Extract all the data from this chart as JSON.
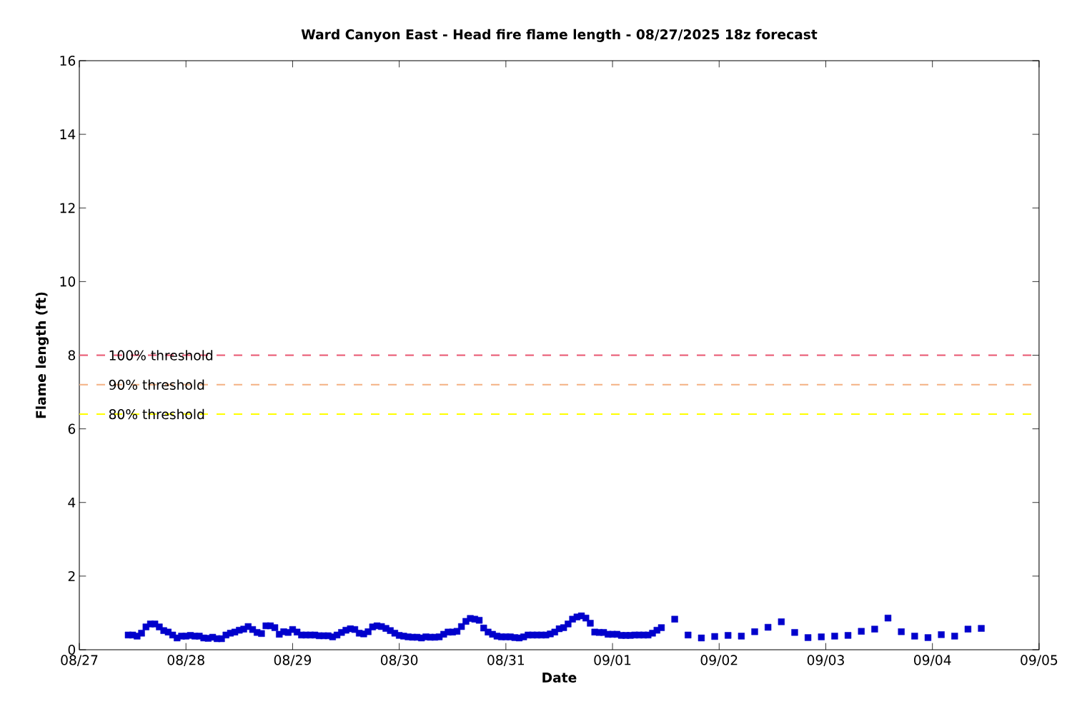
{
  "chart_data": {
    "type": "scatter",
    "title": "Ward Canyon East - Head fire flame length - 08/27/2025 18z forecast",
    "xlabel": "Date",
    "ylabel": "Flame length (ft)",
    "x": [
      "2025-08-27T11:00",
      "2025-08-27T12:00",
      "2025-08-27T13:00",
      "2025-08-27T14:00",
      "2025-08-27T15:00",
      "2025-08-27T16:00",
      "2025-08-27T17:00",
      "2025-08-27T18:00",
      "2025-08-27T19:00",
      "2025-08-27T20:00",
      "2025-08-27T21:00",
      "2025-08-27T22:00",
      "2025-08-27T23:00",
      "2025-08-28T00:00",
      "2025-08-28T01:00",
      "2025-08-28T02:00",
      "2025-08-28T03:00",
      "2025-08-28T04:00",
      "2025-08-28T05:00",
      "2025-08-28T06:00",
      "2025-08-28T07:00",
      "2025-08-28T08:00",
      "2025-08-28T09:00",
      "2025-08-28T10:00",
      "2025-08-28T11:00",
      "2025-08-28T12:00",
      "2025-08-28T13:00",
      "2025-08-28T14:00",
      "2025-08-28T15:00",
      "2025-08-28T16:00",
      "2025-08-28T17:00",
      "2025-08-28T18:00",
      "2025-08-28T19:00",
      "2025-08-28T20:00",
      "2025-08-28T21:00",
      "2025-08-28T22:00",
      "2025-08-28T23:00",
      "2025-08-29T00:00",
      "2025-08-29T01:00",
      "2025-08-29T02:00",
      "2025-08-29T03:00",
      "2025-08-29T04:00",
      "2025-08-29T05:00",
      "2025-08-29T06:00",
      "2025-08-29T07:00",
      "2025-08-29T08:00",
      "2025-08-29T09:00",
      "2025-08-29T10:00",
      "2025-08-29T11:00",
      "2025-08-29T12:00",
      "2025-08-29T13:00",
      "2025-08-29T14:00",
      "2025-08-29T15:00",
      "2025-08-29T16:00",
      "2025-08-29T17:00",
      "2025-08-29T18:00",
      "2025-08-29T19:00",
      "2025-08-29T20:00",
      "2025-08-29T21:00",
      "2025-08-29T22:00",
      "2025-08-29T23:00",
      "2025-08-30T00:00",
      "2025-08-30T01:00",
      "2025-08-30T02:00",
      "2025-08-30T03:00",
      "2025-08-30T04:00",
      "2025-08-30T05:00",
      "2025-08-30T06:00",
      "2025-08-30T07:00",
      "2025-08-30T08:00",
      "2025-08-30T09:00",
      "2025-08-30T10:00",
      "2025-08-30T11:00",
      "2025-08-30T12:00",
      "2025-08-30T13:00",
      "2025-08-30T14:00",
      "2025-08-30T15:00",
      "2025-08-30T16:00",
      "2025-08-30T17:00",
      "2025-08-30T18:00",
      "2025-08-30T19:00",
      "2025-08-30T20:00",
      "2025-08-30T21:00",
      "2025-08-30T22:00",
      "2025-08-30T23:00",
      "2025-08-31T00:00",
      "2025-08-31T01:00",
      "2025-08-31T02:00",
      "2025-08-31T03:00",
      "2025-08-31T04:00",
      "2025-08-31T05:00",
      "2025-08-31T06:00",
      "2025-08-31T07:00",
      "2025-08-31T08:00",
      "2025-08-31T09:00",
      "2025-08-31T10:00",
      "2025-08-31T11:00",
      "2025-08-31T12:00",
      "2025-08-31T13:00",
      "2025-08-31T14:00",
      "2025-08-31T15:00",
      "2025-08-31T16:00",
      "2025-08-31T17:00",
      "2025-08-31T18:00",
      "2025-08-31T19:00",
      "2025-08-31T20:00",
      "2025-08-31T21:00",
      "2025-08-31T22:00",
      "2025-08-31T23:00",
      "2025-09-01T00:00",
      "2025-09-01T01:00",
      "2025-09-01T02:00",
      "2025-09-01T03:00",
      "2025-09-01T04:00",
      "2025-09-01T05:00",
      "2025-09-01T06:00",
      "2025-09-01T07:00",
      "2025-09-01T08:00",
      "2025-09-01T09:00",
      "2025-09-01T10:00",
      "2025-09-01T11:00",
      "2025-09-01T14:00",
      "2025-09-01T17:00",
      "2025-09-01T20:00",
      "2025-09-01T23:00",
      "2025-09-02T02:00",
      "2025-09-02T05:00",
      "2025-09-02T08:00",
      "2025-09-02T11:00",
      "2025-09-02T14:00",
      "2025-09-02T17:00",
      "2025-09-02T20:00",
      "2025-09-02T23:00",
      "2025-09-03T02:00",
      "2025-09-03T05:00",
      "2025-09-03T08:00",
      "2025-09-03T11:00",
      "2025-09-03T14:00",
      "2025-09-03T17:00",
      "2025-09-03T20:00",
      "2025-09-03T23:00",
      "2025-09-04T02:00",
      "2025-09-04T05:00",
      "2025-09-04T08:00",
      "2025-09-04T11:00"
    ],
    "values": [
      0.4,
      0.4,
      0.37,
      0.45,
      0.62,
      0.7,
      0.7,
      0.62,
      0.52,
      0.48,
      0.4,
      0.32,
      0.37,
      0.37,
      0.39,
      0.37,
      0.37,
      0.32,
      0.31,
      0.34,
      0.3,
      0.3,
      0.4,
      0.45,
      0.48,
      0.53,
      0.56,
      0.63,
      0.55,
      0.47,
      0.44,
      0.65,
      0.65,
      0.6,
      0.42,
      0.49,
      0.47,
      0.55,
      0.48,
      0.4,
      0.4,
      0.4,
      0.4,
      0.38,
      0.38,
      0.38,
      0.35,
      0.4,
      0.47,
      0.53,
      0.57,
      0.55,
      0.45,
      0.43,
      0.49,
      0.62,
      0.65,
      0.63,
      0.58,
      0.52,
      0.45,
      0.39,
      0.37,
      0.35,
      0.34,
      0.34,
      0.32,
      0.35,
      0.34,
      0.34,
      0.35,
      0.42,
      0.48,
      0.48,
      0.5,
      0.63,
      0.77,
      0.85,
      0.83,
      0.8,
      0.59,
      0.48,
      0.42,
      0.37,
      0.35,
      0.35,
      0.35,
      0.33,
      0.32,
      0.35,
      0.4,
      0.4,
      0.4,
      0.4,
      0.4,
      0.43,
      0.48,
      0.57,
      0.6,
      0.7,
      0.83,
      0.89,
      0.92,
      0.86,
      0.72,
      0.48,
      0.47,
      0.47,
      0.42,
      0.42,
      0.42,
      0.39,
      0.39,
      0.39,
      0.4,
      0.4,
      0.4,
      0.4,
      0.45,
      0.53,
      0.6,
      0.83,
      0.4,
      0.32,
      0.36,
      0.39,
      0.37,
      0.49,
      0.61,
      0.76,
      0.47,
      0.33,
      0.35,
      0.37,
      0.39,
      0.5,
      0.56,
      0.86,
      0.49,
      0.37,
      0.33,
      0.41,
      0.37,
      0.56,
      0.58
    ],
    "color": "#0000cc",
    "marker": "square",
    "xlim": [
      "2025-08-27",
      "2025-09-05"
    ],
    "xticks": [
      {
        "value": "2025-08-27",
        "label": "08/27"
      },
      {
        "value": "2025-08-28",
        "label": "08/28"
      },
      {
        "value": "2025-08-29",
        "label": "08/29"
      },
      {
        "value": "2025-08-30",
        "label": "08/30"
      },
      {
        "value": "2025-08-31",
        "label": "08/31"
      },
      {
        "value": "2025-09-01",
        "label": "09/01"
      },
      {
        "value": "2025-09-02",
        "label": "09/02"
      },
      {
        "value": "2025-09-03",
        "label": "09/03"
      },
      {
        "value": "2025-09-04",
        "label": "09/04"
      },
      {
        "value": "2025-09-05",
        "label": "09/05"
      }
    ],
    "ylim": [
      0,
      16
    ],
    "yticks": [
      0,
      2,
      4,
      6,
      8,
      10,
      12,
      14,
      16
    ],
    "grid": false,
    "ref_lines": [
      {
        "axis": "y",
        "value": 8,
        "label": "100% threshold",
        "color": "#e8546f",
        "line_style": "dashed"
      },
      {
        "axis": "y",
        "value": 7.2,
        "label": "90% threshold",
        "color": "#f4b183",
        "line_style": "dashed"
      },
      {
        "axis": "y",
        "value": 6.4,
        "label": "80% threshold",
        "color": "#ffff00",
        "line_style": "dashed"
      }
    ]
  }
}
